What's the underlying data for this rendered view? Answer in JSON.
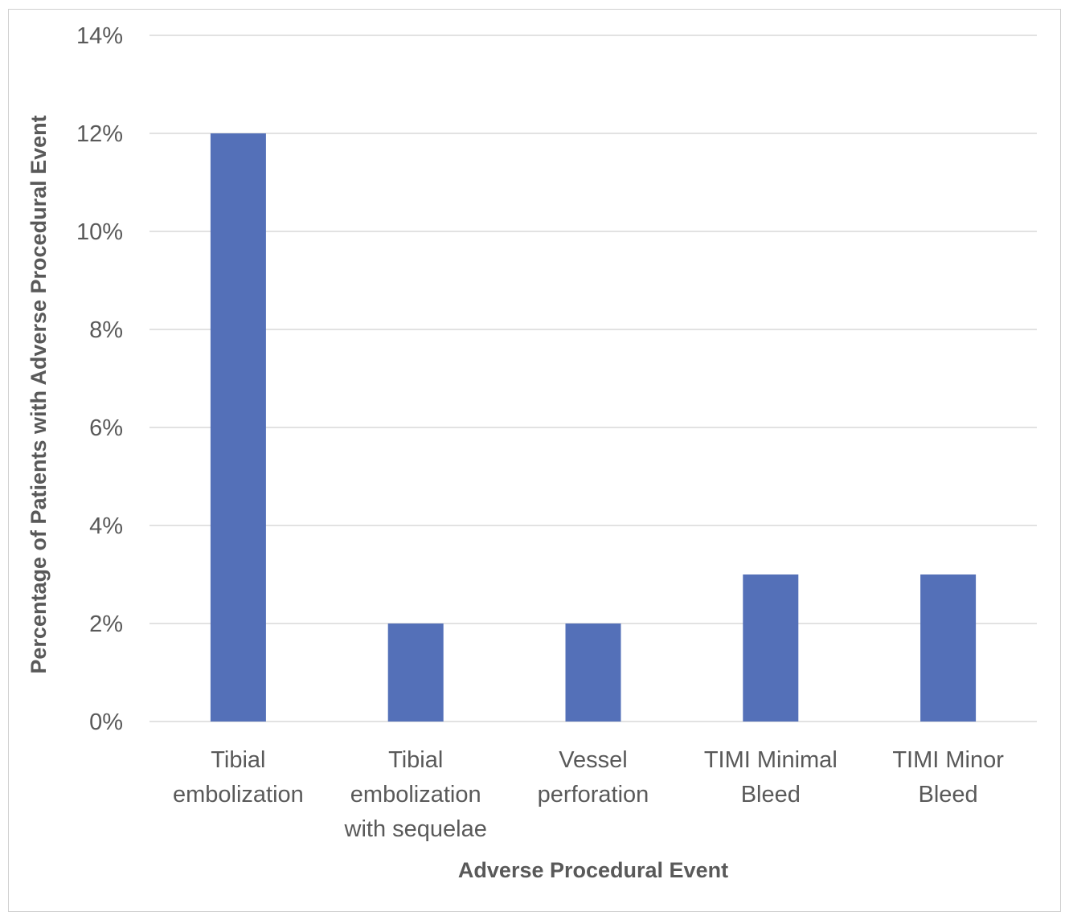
{
  "chart_data": {
    "type": "bar",
    "title": "",
    "xlabel": "Adverse Procedural Event",
    "ylabel": "Percentage of Patients with Adverse Procedural Event",
    "categories": [
      [
        "Tibial",
        "embolization"
      ],
      [
        "Tibial",
        "embolization",
        "with sequelae"
      ],
      [
        "Vessel",
        "perforation"
      ],
      [
        "TIMI Minimal",
        "Bleed"
      ],
      [
        "TIMI Minor",
        "Bleed"
      ]
    ],
    "series": [
      {
        "values": [
          12,
          2,
          2,
          3,
          3
        ],
        "color": "#5470b8"
      }
    ],
    "ylim": [
      0,
      14
    ],
    "yticks": [
      0,
      2,
      4,
      6,
      8,
      10,
      12,
      14
    ],
    "ytick_labels": [
      "0%",
      "2%",
      "4%",
      "6%",
      "8%",
      "10%",
      "12%",
      "14%"
    ],
    "grid": true,
    "gridline_color": "#d9d9d9",
    "legend": false
  }
}
